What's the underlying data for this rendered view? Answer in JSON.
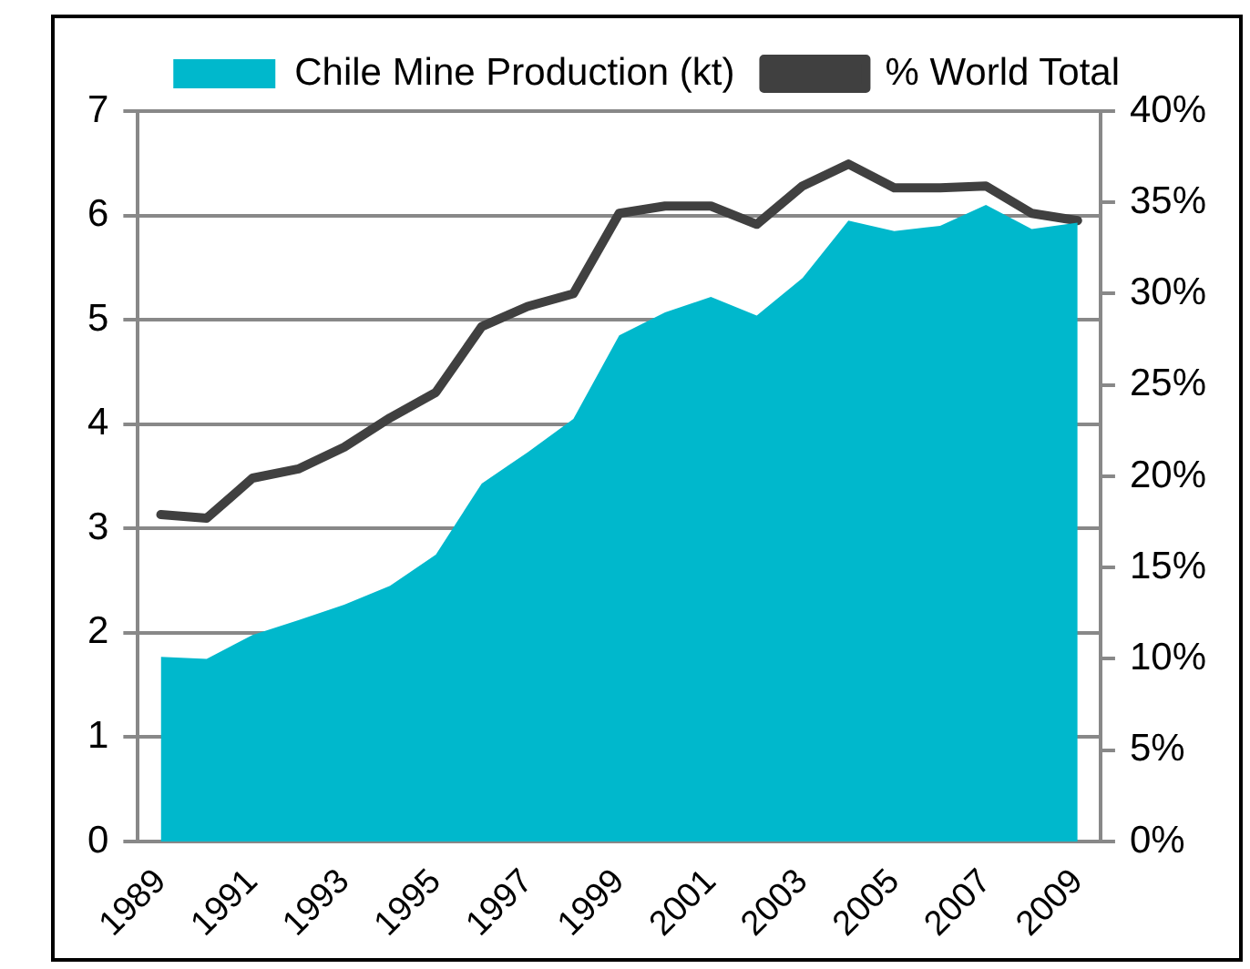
{
  "chart_data": {
    "type": "area",
    "categories": [
      "1989",
      null,
      "1991",
      null,
      "1993",
      null,
      "1995",
      null,
      "1997",
      null,
      "1999",
      null,
      "2001",
      null,
      "2003",
      null,
      "2005",
      null,
      "2007",
      null,
      "2009"
    ],
    "series": [
      {
        "name": "Chile Mine Production (kt)",
        "color": "#00b8cc",
        "values": [
          1.77,
          1.75,
          1.98,
          2.12,
          2.27,
          2.45,
          2.75,
          3.43,
          3.73,
          4.05,
          4.85,
          5.07,
          5.22,
          5.04,
          5.4,
          5.95,
          5.85,
          5.9,
          6.1,
          5.87,
          5.93
        ]
      },
      {
        "name": "% World Total",
        "type": "line",
        "axis": "y2",
        "color": "#404040",
        "values": [
          17.9,
          17.7,
          19.9,
          20.4,
          21.6,
          23.2,
          24.6,
          28.2,
          29.3,
          30.0,
          34.4,
          34.8,
          34.8,
          33.8,
          35.9,
          37.1,
          35.8,
          35.8,
          35.9,
          34.4,
          34.0
        ]
      }
    ],
    "ylim": [
      0,
      7
    ],
    "yticks": [
      0,
      1,
      2,
      3,
      4,
      5,
      6,
      7
    ],
    "y2lim": [
      0,
      40
    ],
    "y2ticks": [
      {
        "value": 0,
        "label": "0%"
      },
      {
        "value": 5,
        "label": "5%"
      },
      {
        "value": 10,
        "label": "10%"
      },
      {
        "value": 15,
        "label": "15%"
      },
      {
        "value": 20,
        "label": "20%"
      },
      {
        "value": 25,
        "label": "25%"
      },
      {
        "value": 30,
        "label": "30%"
      },
      {
        "value": 35,
        "label": "35%"
      },
      {
        "value": 40,
        "label": "40%"
      }
    ],
    "grid": "y",
    "legend": "top",
    "marker": "none",
    "line_style": "solid"
  }
}
